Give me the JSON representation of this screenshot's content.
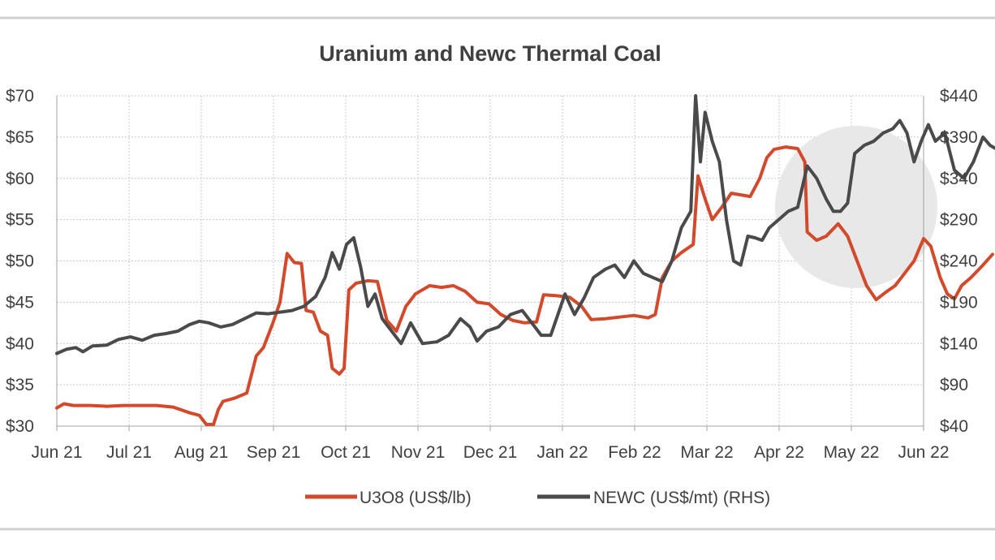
{
  "chart_data": {
    "type": "line",
    "title": "Uranium and Newc Thermal Coal",
    "xlabel": "",
    "ylabel": "",
    "x_tick_labels": [
      "Jun 21",
      "Jul 21",
      "Aug 21",
      "Sep 21",
      "Oct 21",
      "Nov 21",
      "Dec 21",
      "Jan 22",
      "Feb 22",
      "Mar 22",
      "Apr 22",
      "May 22",
      "Jun 22"
    ],
    "left_axis": {
      "min": 30,
      "max": 70,
      "step": 5,
      "tick_labels": [
        "$30",
        "$35",
        "$40",
        "$45",
        "$50",
        "$55",
        "$60",
        "$65",
        "$70"
      ]
    },
    "right_axis": {
      "min": 40,
      "max": 440,
      "step": 50,
      "tick_labels": [
        "$40",
        "$90",
        "$140",
        "$190",
        "$240",
        "$290",
        "$340",
        "$390",
        "$440"
      ]
    },
    "grid": true,
    "legend_position": "bottom",
    "series": [
      {
        "name": "U3O8 (US$/lb)",
        "axis": "left",
        "color": "#d24a2b",
        "points": [
          [
            "2021-06-01",
            32.2
          ],
          [
            "2021-06-04",
            32.7
          ],
          [
            "2021-06-08",
            32.5
          ],
          [
            "2021-06-15",
            32.5
          ],
          [
            "2021-06-22",
            32.4
          ],
          [
            "2021-06-29",
            32.5
          ],
          [
            "2021-07-06",
            32.5
          ],
          [
            "2021-07-13",
            32.5
          ],
          [
            "2021-07-20",
            32.3
          ],
          [
            "2021-07-27",
            31.6
          ],
          [
            "2021-07-31",
            31.3
          ],
          [
            "2021-08-03",
            30.2
          ],
          [
            "2021-08-06",
            30.2
          ],
          [
            "2021-08-08",
            32.0
          ],
          [
            "2021-08-10",
            33.0
          ],
          [
            "2021-08-15",
            33.4
          ],
          [
            "2021-08-20",
            34.0
          ],
          [
            "2021-08-24",
            38.5
          ],
          [
            "2021-08-27",
            39.5
          ],
          [
            "2021-08-31",
            42.5
          ],
          [
            "2021-09-03",
            45.0
          ],
          [
            "2021-09-06",
            50.9
          ],
          [
            "2021-09-09",
            49.8
          ],
          [
            "2021-09-12",
            49.7
          ],
          [
            "2021-09-14",
            44.0
          ],
          [
            "2021-09-17",
            43.8
          ],
          [
            "2021-09-20",
            41.5
          ],
          [
            "2021-09-23",
            41.0
          ],
          [
            "2021-09-25",
            37.0
          ],
          [
            "2021-09-28",
            36.3
          ],
          [
            "2021-09-30",
            37.0
          ],
          [
            "2021-10-02",
            46.5
          ],
          [
            "2021-10-05",
            47.3
          ],
          [
            "2021-10-10",
            47.6
          ],
          [
            "2021-10-14",
            47.5
          ],
          [
            "2021-10-18",
            42.8
          ],
          [
            "2021-10-22",
            41.5
          ],
          [
            "2021-10-26",
            44.5
          ],
          [
            "2021-10-30",
            46.0
          ],
          [
            "2021-11-05",
            47.0
          ],
          [
            "2021-11-10",
            46.8
          ],
          [
            "2021-11-15",
            47.0
          ],
          [
            "2021-11-20",
            46.3
          ],
          [
            "2021-11-25",
            45.0
          ],
          [
            "2021-11-30",
            44.8
          ],
          [
            "2021-12-05",
            43.5
          ],
          [
            "2021-12-10",
            42.8
          ],
          [
            "2021-12-15",
            42.5
          ],
          [
            "2021-12-20",
            42.6
          ],
          [
            "2021-12-23",
            45.9
          ],
          [
            "2021-12-28",
            45.8
          ],
          [
            "2022-01-03",
            45.6
          ],
          [
            "2022-01-08",
            44.5
          ],
          [
            "2022-01-12",
            42.9
          ],
          [
            "2022-01-18",
            43.0
          ],
          [
            "2022-01-24",
            43.2
          ],
          [
            "2022-01-30",
            43.4
          ],
          [
            "2022-02-05",
            43.1
          ],
          [
            "2022-02-08",
            43.5
          ],
          [
            "2022-02-11",
            48.0
          ],
          [
            "2022-02-15",
            50.0
          ],
          [
            "2022-02-19",
            51.0
          ],
          [
            "2022-02-24",
            52.0
          ],
          [
            "2022-02-26",
            60.3
          ],
          [
            "2022-03-01",
            57.5
          ],
          [
            "2022-03-04",
            55.0
          ],
          [
            "2022-03-08",
            56.5
          ],
          [
            "2022-03-12",
            58.2
          ],
          [
            "2022-03-16",
            58.0
          ],
          [
            "2022-03-20",
            57.8
          ],
          [
            "2022-03-24",
            60.0
          ],
          [
            "2022-03-27",
            62.5
          ],
          [
            "2022-03-30",
            63.5
          ],
          [
            "2022-04-04",
            63.8
          ],
          [
            "2022-04-09",
            63.6
          ],
          [
            "2022-04-12",
            62.0
          ],
          [
            "2022-04-13",
            53.5
          ],
          [
            "2022-04-17",
            52.5
          ],
          [
            "2022-04-21",
            53.0
          ],
          [
            "2022-04-26",
            54.5
          ],
          [
            "2022-04-30",
            53.0
          ],
          [
            "2022-05-04",
            50.0
          ],
          [
            "2022-05-08",
            47.0
          ],
          [
            "2022-05-12",
            45.3
          ],
          [
            "2022-05-16",
            46.2
          ],
          [
            "2022-05-20",
            47.0
          ],
          [
            "2022-05-24",
            48.5
          ],
          [
            "2022-05-28",
            50.0
          ],
          [
            "2022-06-01",
            52.7
          ],
          [
            "2022-06-04",
            51.8
          ],
          [
            "2022-06-08",
            48.0
          ],
          [
            "2022-06-11",
            46.0
          ],
          [
            "2022-06-14",
            45.4
          ],
          [
            "2022-06-17",
            47.0
          ],
          [
            "2022-06-21",
            48.0
          ],
          [
            "2022-06-26",
            49.5
          ],
          [
            "2022-06-30",
            50.8
          ]
        ]
      },
      {
        "name": "NEWC (US$/mt) (RHS)",
        "axis": "right",
        "color": "#4a4a4a",
        "points": [
          [
            "2021-06-01",
            128
          ],
          [
            "2021-06-05",
            133
          ],
          [
            "2021-06-09",
            135
          ],
          [
            "2021-06-12",
            130
          ],
          [
            "2021-06-16",
            137
          ],
          [
            "2021-06-22",
            138
          ],
          [
            "2021-06-27",
            145
          ],
          [
            "2021-07-02",
            148
          ],
          [
            "2021-07-07",
            144
          ],
          [
            "2021-07-12",
            150
          ],
          [
            "2021-07-17",
            152
          ],
          [
            "2021-07-22",
            155
          ],
          [
            "2021-07-27",
            163
          ],
          [
            "2021-07-31",
            167
          ],
          [
            "2021-08-04",
            165
          ],
          [
            "2021-08-09",
            160
          ],
          [
            "2021-08-14",
            163
          ],
          [
            "2021-08-19",
            170
          ],
          [
            "2021-08-24",
            177
          ],
          [
            "2021-08-29",
            176
          ],
          [
            "2021-09-03",
            178
          ],
          [
            "2021-09-08",
            180
          ],
          [
            "2021-09-13",
            185
          ],
          [
            "2021-09-18",
            197
          ],
          [
            "2021-09-22",
            220
          ],
          [
            "2021-09-25",
            250
          ],
          [
            "2021-09-28",
            230
          ],
          [
            "2021-10-01",
            260
          ],
          [
            "2021-10-04",
            268
          ],
          [
            "2021-10-07",
            232
          ],
          [
            "2021-10-10",
            185
          ],
          [
            "2021-10-13",
            200
          ],
          [
            "2021-10-16",
            170
          ],
          [
            "2021-10-20",
            155
          ],
          [
            "2021-10-24",
            140
          ],
          [
            "2021-10-28",
            165
          ],
          [
            "2021-11-02",
            140
          ],
          [
            "2021-11-08",
            142
          ],
          [
            "2021-11-13",
            150
          ],
          [
            "2021-11-18",
            170
          ],
          [
            "2021-11-22",
            160
          ],
          [
            "2021-11-25",
            143
          ],
          [
            "2021-11-29",
            155
          ],
          [
            "2021-12-04",
            160
          ],
          [
            "2021-12-09",
            175
          ],
          [
            "2021-12-14",
            180
          ],
          [
            "2021-12-18",
            165
          ],
          [
            "2021-12-22",
            150
          ],
          [
            "2021-12-26",
            150
          ],
          [
            "2022-01-01",
            200
          ],
          [
            "2022-01-05",
            175
          ],
          [
            "2022-01-09",
            195
          ],
          [
            "2022-01-13",
            220
          ],
          [
            "2022-01-18",
            230
          ],
          [
            "2022-01-22",
            235
          ],
          [
            "2022-01-26",
            220
          ],
          [
            "2022-01-30",
            240
          ],
          [
            "2022-02-03",
            225
          ],
          [
            "2022-02-07",
            220
          ],
          [
            "2022-02-11",
            215
          ],
          [
            "2022-02-15",
            240
          ],
          [
            "2022-02-19",
            280
          ],
          [
            "2022-02-23",
            300
          ],
          [
            "2022-02-25",
            440
          ],
          [
            "2022-02-27",
            360
          ],
          [
            "2022-03-01",
            420
          ],
          [
            "2022-03-04",
            385
          ],
          [
            "2022-03-07",
            360
          ],
          [
            "2022-03-10",
            290
          ],
          [
            "2022-03-13",
            240
          ],
          [
            "2022-03-16",
            235
          ],
          [
            "2022-03-19",
            270
          ],
          [
            "2022-03-22",
            268
          ],
          [
            "2022-03-25",
            265
          ],
          [
            "2022-03-28",
            280
          ],
          [
            "2022-04-01",
            290
          ],
          [
            "2022-04-05",
            300
          ],
          [
            "2022-04-09",
            305
          ],
          [
            "2022-04-13",
            355
          ],
          [
            "2022-04-17",
            340
          ],
          [
            "2022-04-21",
            315
          ],
          [
            "2022-04-24",
            300
          ],
          [
            "2022-04-27",
            300
          ],
          [
            "2022-04-30",
            310
          ],
          [
            "2022-05-03",
            370
          ],
          [
            "2022-05-07",
            380
          ],
          [
            "2022-05-11",
            385
          ],
          [
            "2022-05-15",
            395
          ],
          [
            "2022-05-19",
            400
          ],
          [
            "2022-05-22",
            410
          ],
          [
            "2022-05-25",
            395
          ],
          [
            "2022-05-28",
            360
          ],
          [
            "2022-05-31",
            385
          ],
          [
            "2022-06-03",
            405
          ],
          [
            "2022-06-06",
            385
          ],
          [
            "2022-06-10",
            395
          ],
          [
            "2022-06-14",
            350
          ],
          [
            "2022-06-18",
            340
          ],
          [
            "2022-06-22",
            360
          ],
          [
            "2022-06-26",
            390
          ],
          [
            "2022-06-29",
            380
          ],
          [
            "2022-07-02",
            375
          ],
          [
            "2022-07-04",
            360
          ],
          [
            "2022-07-06",
            370
          ]
        ]
      }
    ]
  }
}
